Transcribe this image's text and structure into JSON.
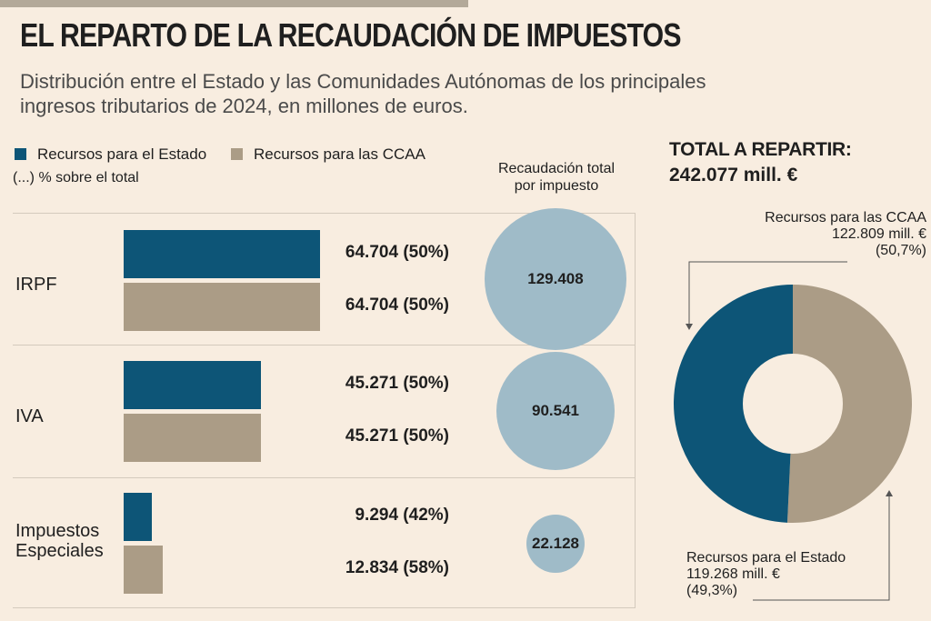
{
  "header": {
    "title": "EL REPARTO DE LA RECAUDACIÓN DE IMPUESTOS",
    "subtitle_line1": "Distribución entre el Estado y las Comunidades Autónomas de los principales",
    "subtitle_line2": "ingresos tributarios de 2024, en millones de euros."
  },
  "legend": {
    "estado": "Recursos para el Estado",
    "ccaa": "Recursos para las CCAA",
    "note": "(...) % sobre el total"
  },
  "colors": {
    "estado": "#0d5577",
    "ccaa": "#ab9c86",
    "bubble": "#9fbbc8",
    "background": "#f8ede0"
  },
  "column_header": {
    "line1": "Recaudación total",
    "line2": "por impuesto"
  },
  "total": {
    "label": "TOTAL A REPARTIR:",
    "value": "242.077 mill. €"
  },
  "donut": {
    "ccaa": {
      "label": "Recursos para las CCAA",
      "value": "122.809 mill. €",
      "pct": "(50,7%)"
    },
    "estado": {
      "label": "Recursos para el Estado",
      "value": "119.268 mill. €",
      "pct": "(49,3%)"
    }
  },
  "chart_data": [
    {
      "type": "bar",
      "categories": [
        "IRPF",
        "IVA",
        "Impuestos Especiales"
      ],
      "series": [
        {
          "name": "Recursos para el Estado",
          "values": [
            64704,
            45271,
            9294
          ],
          "labels": [
            "64.704 (50%)",
            "45.271 (50%)",
            "9.294 (42%)"
          ]
        },
        {
          "name": "Recursos para las CCAA",
          "values": [
            64704,
            45271,
            12834
          ],
          "labels": [
            "64.704 (50%)",
            "45.271 (50%)",
            "12.834 (58%)"
          ]
        }
      ],
      "totals": [
        129408,
        90541,
        22128
      ],
      "total_labels": [
        "129.408",
        "90.541",
        "22.128"
      ]
    },
    {
      "type": "pie",
      "categories": [
        "Recursos para las CCAA",
        "Recursos para el Estado"
      ],
      "values": [
        122809,
        119268
      ]
    }
  ]
}
